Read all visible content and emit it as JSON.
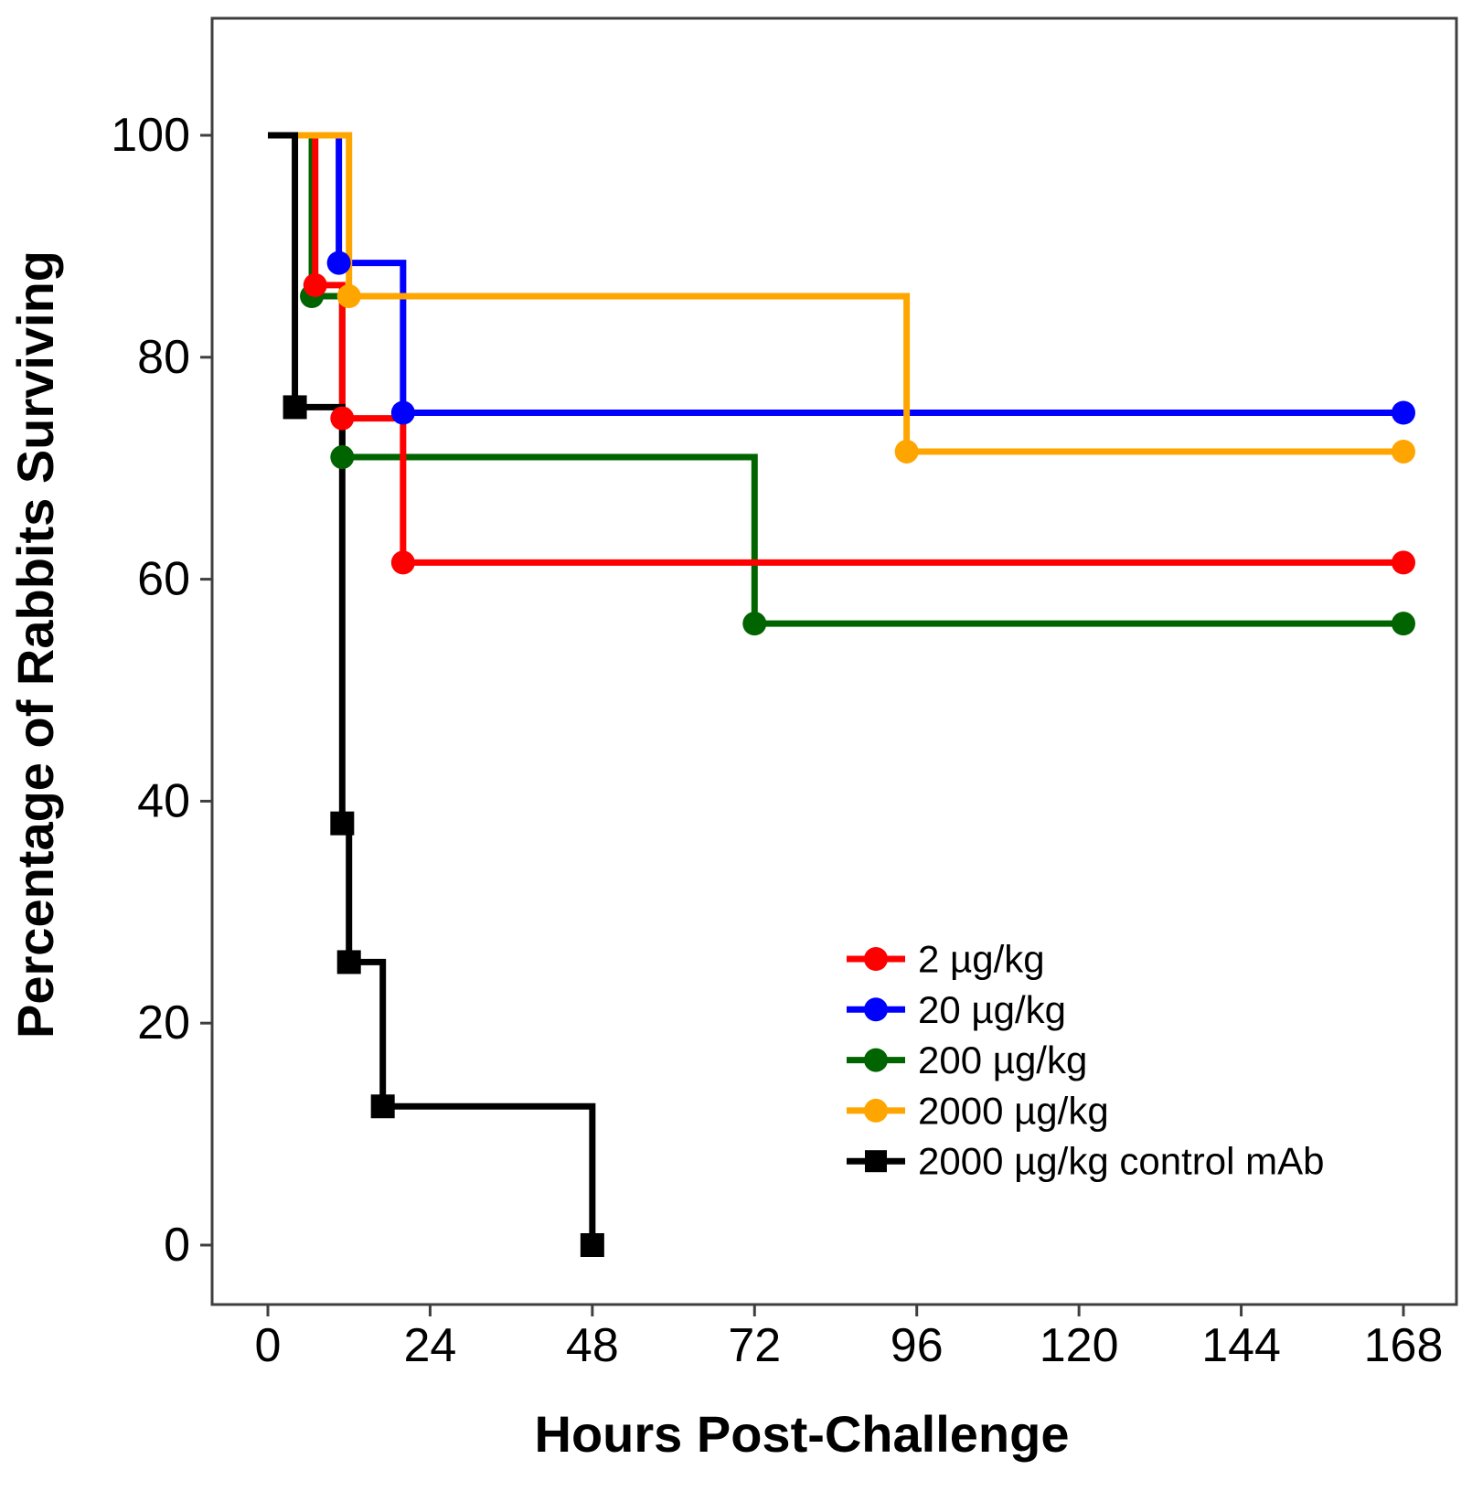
{
  "figure": {
    "background": "#FFFFFF",
    "axis_color": "#3F3F3F",
    "text_color": "#000000"
  },
  "chart_data": {
    "type": "line",
    "subtype": "kaplan-meier-step-survival",
    "title": "",
    "xlabel": "Hours Post-Challenge",
    "ylabel": "Percentage of Rabbits Surviving",
    "xlim": [
      -8,
      176
    ],
    "ylim": [
      -12,
      110
    ],
    "x_ticks": [
      0,
      24,
      48,
      72,
      96,
      120,
      144,
      168
    ],
    "y_ticks": [
      0,
      20,
      40,
      60,
      80,
      100
    ],
    "grid": false,
    "legend_position": "inside-lower-right",
    "series": [
      {
        "name": "2 µg/kg",
        "color": "#FF0000",
        "marker": "circle",
        "start": [
          0,
          100
        ],
        "steps": [
          [
            7,
            86.5
          ],
          [
            11,
            74.5
          ],
          [
            20,
            61.5
          ]
        ],
        "end_time": 168,
        "final_value": 61.5
      },
      {
        "name": "20 µg/kg",
        "color": "#0000FF",
        "marker": "circle",
        "start": [
          0,
          100
        ],
        "steps": [
          [
            10.5,
            88.5
          ],
          [
            20,
            75
          ]
        ],
        "end_time": 168,
        "final_value": 75
      },
      {
        "name": "200 µg/kg",
        "color": "#006400",
        "marker": "circle",
        "start": [
          0,
          100
        ],
        "steps": [
          [
            6.5,
            85.5
          ],
          [
            11,
            71
          ],
          [
            72,
            56
          ]
        ],
        "end_time": 168,
        "final_value": 56
      },
      {
        "name": "2000 µg/kg",
        "color": "#FFA500",
        "marker": "circle",
        "start": [
          0,
          100
        ],
        "steps": [
          [
            12,
            85.5
          ],
          [
            94.5,
            71.5
          ]
        ],
        "end_time": 168,
        "final_value": 71.5
      },
      {
        "name": "2000 µg/kg control mAb",
        "color": "#000000",
        "marker": "square",
        "start": [
          0,
          100
        ],
        "steps": [
          [
            4,
            75.5
          ],
          [
            11,
            38
          ],
          [
            12,
            25.5
          ],
          [
            17,
            12.5
          ],
          [
            48,
            0
          ]
        ],
        "end_time": 48,
        "final_value": 0
      }
    ]
  }
}
